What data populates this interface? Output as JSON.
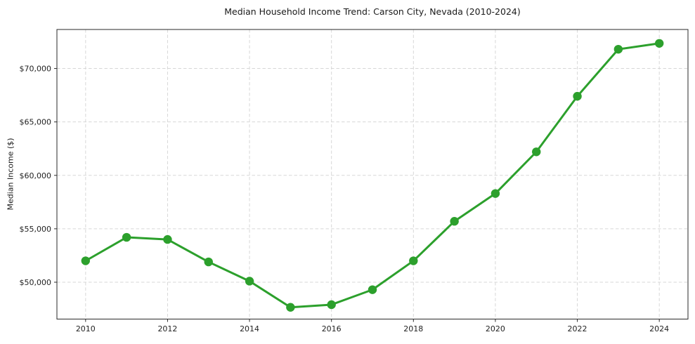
{
  "chart_data": {
    "type": "line",
    "title": "Median Household Income Trend: Carson City, Nevada (2010-2024)",
    "xlabel": "",
    "ylabel": "Median Income ($)",
    "x": [
      2010,
      2011,
      2012,
      2013,
      2014,
      2015,
      2016,
      2017,
      2018,
      2019,
      2020,
      2021,
      2022,
      2023,
      2024
    ],
    "series": [
      {
        "name": "Median household income",
        "color": "#2ca02c",
        "values": [
          52000,
          54200,
          54000,
          51900,
          50100,
          47650,
          47900,
          49300,
          52000,
          55700,
          58300,
          62200,
          67400,
          71800,
          72350
        ]
      }
    ],
    "xticks": [
      2010,
      2012,
      2014,
      2016,
      2018,
      2020,
      2022,
      2024
    ],
    "xtick_labels": [
      "2010",
      "2012",
      "2014",
      "2016",
      "2018",
      "2020",
      "2022",
      "2024"
    ],
    "yticks": [
      50000,
      55000,
      60000,
      65000,
      70000
    ],
    "ytick_labels": [
      "$50,000",
      "$55,000",
      "$60,000",
      "$65,000",
      "$70,000"
    ],
    "xlim": [
      2009.3,
      2024.7
    ],
    "ylim": [
      46550,
      73650
    ],
    "grid": true,
    "grid_linestyle": "dashed",
    "legend_position": "none",
    "marker": "circle",
    "colors": {
      "line": "#2ca02c",
      "grid": "#d7d7d7",
      "spine": "#2a2a2a",
      "tick": "#2a2a2a",
      "tick_label": "#1f1f1f",
      "background": "#ffffff"
    }
  }
}
